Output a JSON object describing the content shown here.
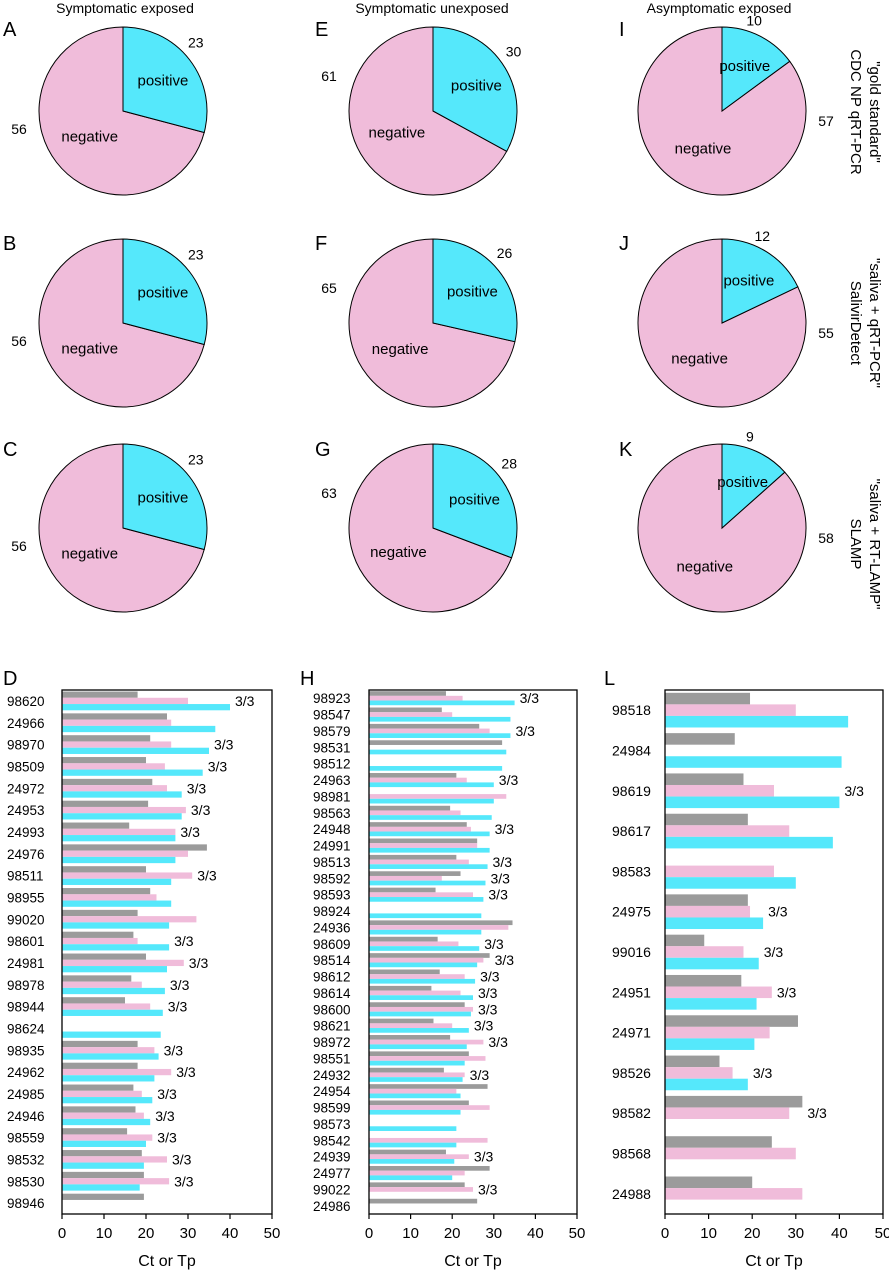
{
  "colors": {
    "positive": "#55e8fb",
    "negative": "#f0bcda",
    "gray": "#9b9b9b",
    "cyan": "#55e8fb",
    "pink": "#f0bcda"
  },
  "column_titles": [
    "Symptomatic exposed",
    "Symptomatic unexposed",
    "Asymptomatic exposed"
  ],
  "row_labels": [
    [
      "CDC NP qRT-PCR",
      "\"gold standard\""
    ],
    [
      "SalivirDetect",
      "\"saliva + qRT-PCR\""
    ],
    [
      "SLAMP",
      "\"saliva + RT-LAMP\""
    ]
  ],
  "bar_axis_label": "Ct or Tp",
  "chart_data": [
    {
      "type": "pie",
      "panel": "A",
      "labels": [
        "positive",
        "negative"
      ],
      "values": [
        23,
        56
      ]
    },
    {
      "type": "pie",
      "panel": "B",
      "labels": [
        "positive",
        "negative"
      ],
      "values": [
        23,
        56
      ]
    },
    {
      "type": "pie",
      "panel": "C",
      "labels": [
        "positive",
        "negative"
      ],
      "values": [
        23,
        56
      ]
    },
    {
      "type": "pie",
      "panel": "E",
      "labels": [
        "positive",
        "negative"
      ],
      "values": [
        30,
        61
      ]
    },
    {
      "type": "pie",
      "panel": "F",
      "labels": [
        "positive",
        "negative"
      ],
      "values": [
        26,
        65
      ]
    },
    {
      "type": "pie",
      "panel": "G",
      "labels": [
        "positive",
        "negative"
      ],
      "values": [
        28,
        63
      ]
    },
    {
      "type": "pie",
      "panel": "I",
      "labels": [
        "positive",
        "negative"
      ],
      "values": [
        10,
        57
      ]
    },
    {
      "type": "pie",
      "panel": "J",
      "labels": [
        "positive",
        "negative"
      ],
      "values": [
        12,
        55
      ]
    },
    {
      "type": "pie",
      "panel": "K",
      "labels": [
        "positive",
        "negative"
      ],
      "values": [
        9,
        58
      ]
    },
    {
      "type": "bar",
      "orientation": "horizontal",
      "panel": "D",
      "xlabel": "Ct or Tp",
      "xlim": [
        0,
        50
      ],
      "xticks": [
        0,
        10,
        20,
        30,
        40,
        50
      ],
      "samples": [
        {
          "id": "98620",
          "gray": 18,
          "pink": 30,
          "cyan": 40,
          "label": "3/3"
        },
        {
          "id": "24966",
          "gray": 25,
          "pink": 26,
          "cyan": 36.5,
          "label": ""
        },
        {
          "id": "98970",
          "gray": 21,
          "pink": 26,
          "cyan": 35,
          "label": "3/3"
        },
        {
          "id": "98509",
          "gray": 20,
          "pink": 24.5,
          "cyan": 33.5,
          "label": "3/3"
        },
        {
          "id": "24972",
          "gray": 21.5,
          "pink": 25,
          "cyan": 28.5,
          "label": "3/3"
        },
        {
          "id": "24953",
          "gray": 20.5,
          "pink": 29.5,
          "cyan": 28.5,
          "label": "3/3"
        },
        {
          "id": "24993",
          "gray": 16,
          "pink": 27,
          "cyan": 27,
          "label": "3/3"
        },
        {
          "id": "24976",
          "gray": 34.5,
          "pink": 30,
          "cyan": 27,
          "label": ""
        },
        {
          "id": "98511",
          "gray": 20,
          "pink": 31,
          "cyan": 26,
          "label": "3/3"
        },
        {
          "id": "98955",
          "gray": 21,
          "pink": 22.5,
          "cyan": 26,
          "label": ""
        },
        {
          "id": "99020",
          "gray": 18,
          "pink": 32,
          "cyan": 25.5,
          "label": ""
        },
        {
          "id": "98601",
          "gray": 17,
          "pink": 18,
          "cyan": 25.5,
          "label": "3/3"
        },
        {
          "id": "24981",
          "gray": 20,
          "pink": 29,
          "cyan": 25,
          "label": "3/3"
        },
        {
          "id": "98978",
          "gray": 16.5,
          "pink": 19,
          "cyan": 24.5,
          "label": "3/3"
        },
        {
          "id": "98944",
          "gray": 15,
          "pink": 21,
          "cyan": 24,
          "label": "3/3"
        },
        {
          "id": "98624",
          "gray": 0,
          "pink": 0,
          "cyan": 23.5,
          "label": ""
        },
        {
          "id": "98935",
          "gray": 18,
          "pink": 22,
          "cyan": 23,
          "label": "3/3"
        },
        {
          "id": "24962",
          "gray": 18,
          "pink": 26,
          "cyan": 22,
          "label": "3/3"
        },
        {
          "id": "24985",
          "gray": 17,
          "pink": 19,
          "cyan": 21.5,
          "label": "3/3"
        },
        {
          "id": "24946",
          "gray": 17.5,
          "pink": 19.5,
          "cyan": 21,
          "label": "3/3"
        },
        {
          "id": "98559",
          "gray": 15.5,
          "pink": 21.5,
          "cyan": 20,
          "label": "3/3"
        },
        {
          "id": "98532",
          "gray": 19,
          "pink": 25,
          "cyan": 19.5,
          "label": "3/3"
        },
        {
          "id": "98530",
          "gray": 19.5,
          "pink": 25.5,
          "cyan": 18.5,
          "label": "3/3"
        },
        {
          "id": "98946",
          "gray": 19.5,
          "pink": 0,
          "cyan": 0,
          "label": ""
        }
      ]
    },
    {
      "type": "bar",
      "orientation": "horizontal",
      "panel": "H",
      "xlabel": "Ct or Tp",
      "xlim": [
        0,
        50
      ],
      "xticks": [
        0,
        10,
        20,
        30,
        40,
        50
      ],
      "samples": [
        {
          "id": "98923",
          "gray": 18.5,
          "pink": 22.5,
          "cyan": 35,
          "label": "3/3"
        },
        {
          "id": "98547",
          "gray": 17.5,
          "pink": 20,
          "cyan": 34,
          "label": ""
        },
        {
          "id": "98579",
          "gray": 26.5,
          "pink": 29,
          "cyan": 34,
          "label": "3/3"
        },
        {
          "id": "98531",
          "gray": 32,
          "pink": 0,
          "cyan": 33,
          "label": ""
        },
        {
          "id": "98512",
          "gray": 0,
          "pink": 0,
          "cyan": 32,
          "label": ""
        },
        {
          "id": "24963",
          "gray": 21,
          "pink": 23.5,
          "cyan": 30,
          "label": "3/3"
        },
        {
          "id": "98981",
          "gray": 0,
          "pink": 33,
          "cyan": 30,
          "label": ""
        },
        {
          "id": "98563",
          "gray": 19.5,
          "pink": 22,
          "cyan": 29.5,
          "label": ""
        },
        {
          "id": "24948",
          "gray": 23.5,
          "pink": 24.5,
          "cyan": 29,
          "label": "3/3"
        },
        {
          "id": "24991",
          "gray": 26,
          "pink": 26,
          "cyan": 29,
          "label": ""
        },
        {
          "id": "98513",
          "gray": 21,
          "pink": 24,
          "cyan": 28.5,
          "label": "3/3"
        },
        {
          "id": "98592",
          "gray": 22,
          "pink": 17.5,
          "cyan": 28,
          "label": "3/3"
        },
        {
          "id": "98593",
          "gray": 16,
          "pink": 25,
          "cyan": 27.5,
          "label": "3/3"
        },
        {
          "id": "98924",
          "gray": 0,
          "pink": 0,
          "cyan": 27,
          "label": ""
        },
        {
          "id": "24936",
          "gray": 34.5,
          "pink": 33.5,
          "cyan": 27,
          "label": ""
        },
        {
          "id": "98609",
          "gray": 16.5,
          "pink": 21.5,
          "cyan": 26.5,
          "label": "3/3"
        },
        {
          "id": "98514",
          "gray": 29,
          "pink": 27.5,
          "cyan": 26,
          "label": "3/3"
        },
        {
          "id": "98612",
          "gray": 17,
          "pink": 23,
          "cyan": 25.5,
          "label": "3/3"
        },
        {
          "id": "98614",
          "gray": 15,
          "pink": 22,
          "cyan": 25,
          "label": "3/3"
        },
        {
          "id": "98600",
          "gray": 23,
          "pink": 25,
          "cyan": 24.5,
          "label": "3/3"
        },
        {
          "id": "98621",
          "gray": 15.5,
          "pink": 20,
          "cyan": 24,
          "label": "3/3"
        },
        {
          "id": "98972",
          "gray": 19.5,
          "pink": 27.5,
          "cyan": 23.5,
          "label": "3/3"
        },
        {
          "id": "98551",
          "gray": 24,
          "pink": 28,
          "cyan": 23,
          "label": ""
        },
        {
          "id": "24932",
          "gray": 18,
          "pink": 23,
          "cyan": 22.5,
          "label": "3/3"
        },
        {
          "id": "24954",
          "gray": 28.5,
          "pink": 21,
          "cyan": 22,
          "label": ""
        },
        {
          "id": "98599",
          "gray": 24,
          "pink": 29,
          "cyan": 22,
          "label": ""
        },
        {
          "id": "98573",
          "gray": 0,
          "pink": 0,
          "cyan": 21,
          "label": ""
        },
        {
          "id": "98542",
          "gray": 0,
          "pink": 28.5,
          "cyan": 21,
          "label": ""
        },
        {
          "id": "24939",
          "gray": 18.5,
          "pink": 24,
          "cyan": 20.5,
          "label": "3/3"
        },
        {
          "id": "24977",
          "gray": 29,
          "pink": 23,
          "cyan": 20,
          "label": ""
        },
        {
          "id": "99022",
          "gray": 23,
          "pink": 25,
          "cyan": 0,
          "label": "3/3"
        },
        {
          "id": "24986",
          "gray": 26,
          "pink": 0,
          "cyan": 0,
          "label": ""
        }
      ]
    },
    {
      "type": "bar",
      "orientation": "horizontal",
      "panel": "L",
      "xlabel": "Ct or Tp",
      "xlim": [
        0,
        50
      ],
      "xticks": [
        0,
        10,
        20,
        30,
        40,
        50
      ],
      "samples": [
        {
          "id": "98518",
          "gray": 19.5,
          "pink": 30,
          "cyan": 42,
          "label": ""
        },
        {
          "id": "24984",
          "gray": 16,
          "pink": 0,
          "cyan": 40.5,
          "label": ""
        },
        {
          "id": "98619",
          "gray": 18,
          "pink": 25,
          "cyan": 40,
          "label": "3/3"
        },
        {
          "id": "98617",
          "gray": 19,
          "pink": 28.5,
          "cyan": 38.5,
          "label": ""
        },
        {
          "id": "98583",
          "gray": 0,
          "pink": 25,
          "cyan": 30,
          "label": ""
        },
        {
          "id": "24975",
          "gray": 19,
          "pink": 19.5,
          "cyan": 22.5,
          "label": "3/3"
        },
        {
          "id": "99016",
          "gray": 9,
          "pink": 18,
          "cyan": 21.5,
          "label": "3/3"
        },
        {
          "id": "24951",
          "gray": 17.5,
          "pink": 24.5,
          "cyan": 21,
          "label": "3/3"
        },
        {
          "id": "24971",
          "gray": 30.5,
          "pink": 24,
          "cyan": 20.5,
          "label": ""
        },
        {
          "id": "98526",
          "gray": 12.5,
          "pink": 15.5,
          "cyan": 19,
          "label": "3/3"
        },
        {
          "id": "98582",
          "gray": 31.5,
          "pink": 28.5,
          "cyan": 0,
          "label": "3/3"
        },
        {
          "id": "98568",
          "gray": 24.5,
          "pink": 30,
          "cyan": 0,
          "label": ""
        },
        {
          "id": "24988",
          "gray": 20,
          "pink": 31.5,
          "cyan": 0,
          "label": ""
        }
      ]
    }
  ]
}
